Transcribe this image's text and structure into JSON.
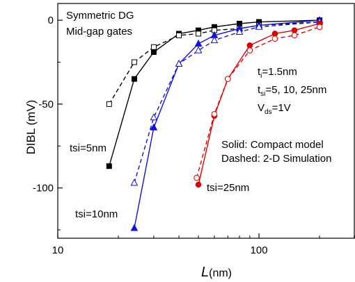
{
  "chart_data": {
    "type": "line",
    "xscale": "log",
    "xlim": [
      10,
      300
    ],
    "ylim": [
      -130,
      10
    ],
    "xticks": [
      10,
      100
    ],
    "yticks": [
      0,
      -50,
      -100
    ],
    "xlabel": "L",
    "xlabel_unit": "(nm)",
    "ylabel": "DIBL (mV)",
    "grid": false,
    "annotations": {
      "title_line1": "Symmetric DG",
      "title_line2": "Mid-gap gates",
      "ti_main": "t",
      "ti_sub": "i",
      "ti_rest": "=1.5nm",
      "tsi_main": "t",
      "tsi_sub": "si",
      "tsi_rest": "=5, 10, 25nm",
      "vds_main": "V",
      "vds_sub": "ds",
      "vds_rest": "=1V",
      "legend_solid": "Solid: Compact model",
      "legend_dashed": "Dashed: 2-D Simulation",
      "label_tsi5": "tsi=5nm",
      "label_tsi10": "tsi=10nm",
      "label_tsi25": "tsi=25nm"
    },
    "series": [
      {
        "color": "#000000",
        "style": "solid",
        "marker": "square-filled",
        "x": [
          18,
          24,
          30,
          40,
          50,
          60,
          80,
          100,
          200
        ],
        "y": [
          -87,
          -35,
          -19,
          -8,
          -6,
          -4,
          -2,
          -1,
          0
        ]
      },
      {
        "color": "#000000",
        "style": "dashed",
        "marker": "square-open",
        "x": [
          18,
          24,
          30,
          40,
          50,
          60,
          80,
          100,
          200
        ],
        "y": [
          -50,
          -25,
          -16,
          -9,
          -8,
          -6,
          -5,
          -3,
          -1
        ]
      },
      {
        "color": "#1010e0",
        "style": "solid",
        "marker": "triangle-filled",
        "x": [
          24,
          30,
          40,
          50,
          60,
          80,
          100,
          200
        ],
        "y": [
          -124,
          -64,
          -26,
          -14,
          -9,
          -5,
          -3,
          0
        ]
      },
      {
        "color": "#1010e0",
        "style": "dashed",
        "marker": "triangle-open",
        "x": [
          24,
          30,
          40,
          50,
          60,
          80,
          100,
          200
        ],
        "y": [
          -97,
          -58,
          -26,
          -18,
          -12,
          -7,
          -4,
          -1
        ]
      },
      {
        "color": "#e00000",
        "style": "solid",
        "marker": "circle-filled",
        "x": [
          50,
          60,
          70,
          90,
          120,
          150,
          200
        ],
        "y": [
          -98,
          -57,
          -35,
          -15,
          -8,
          -6,
          -2
        ]
      },
      {
        "color": "#e00000",
        "style": "dashed",
        "marker": "circle-open",
        "x": [
          49,
          60,
          70,
          90,
          120,
          150,
          200
        ],
        "y": [
          -94,
          -56,
          -35,
          -18,
          -11,
          -9,
          -4
        ]
      }
    ]
  }
}
